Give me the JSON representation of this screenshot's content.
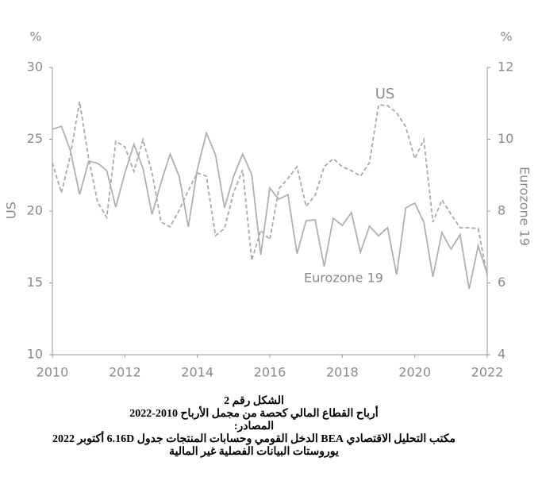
{
  "chart_data": {
    "type": "line",
    "yunit": "%",
    "y2unit": "%",
    "ylabel": "US",
    "y2label": "Eurozone 19",
    "x": [
      2010,
      2010.25,
      2010.5,
      2010.75,
      2011,
      2011.25,
      2011.5,
      2011.75,
      2012,
      2012.25,
      2012.5,
      2012.75,
      2013,
      2013.25,
      2013.5,
      2013.75,
      2014,
      2014.25,
      2014.5,
      2014.75,
      2015,
      2015.25,
      2015.5,
      2015.75,
      2016,
      2016.25,
      2016.5,
      2016.75,
      2017,
      2017.25,
      2017.5,
      2017.75,
      2018,
      2018.25,
      2018.5,
      2018.75,
      2019,
      2019.25,
      2019.5,
      2019.75,
      2020,
      2020.25,
      2020.5,
      2020.75,
      2021,
      2021.25,
      2021.5,
      2021.75,
      2022
    ],
    "series": [
      {
        "name": "US",
        "axis": "y",
        "color": "#aaaaaa",
        "line_style": "dashed",
        "values": [
          23.37,
          21.27,
          23.92,
          27.62,
          23.65,
          20.61,
          19.56,
          24.86,
          24.48,
          22.76,
          24.97,
          22.65,
          19.23,
          18.9,
          20.06,
          21.44,
          22.65,
          22.43,
          18.29,
          18.78,
          21.27,
          22.87,
          16.57,
          18.67,
          18.01,
          21.55,
          22.27,
          23.09,
          20.33,
          21.1,
          23.09,
          23.65,
          23.09,
          22.82,
          22.43,
          23.37,
          27.4,
          27.35,
          26.85,
          25.86,
          23.65,
          24.97,
          19.23,
          20.77,
          19.78,
          18.84,
          18.84,
          18.78,
          15.47
        ]
      },
      {
        "name": "Eurozone 19",
        "axis": "y2",
        "color": "#b0b0b0",
        "line_style": "solid",
        "values": [
          10.28,
          10.36,
          9.68,
          8.46,
          9.39,
          9.33,
          9.13,
          8.11,
          9.06,
          9.86,
          9.19,
          7.91,
          8.8,
          9.59,
          8.97,
          7.56,
          9.17,
          10.17,
          9.57,
          8.09,
          8.97,
          9.59,
          9.02,
          6.78,
          8.64,
          8.33,
          8.46,
          6.81,
          7.73,
          7.76,
          6.45,
          7.8,
          7.6,
          7.96,
          6.85,
          7.58,
          7.31,
          7.54,
          6.23,
          8.09,
          8.22,
          7.69,
          6.17,
          7.4,
          6.94,
          7.34,
          5.83,
          7.03,
          6.25
        ]
      }
    ],
    "xlim": [
      2010,
      2022
    ],
    "xticks": [
      2010,
      2012,
      2014,
      2016,
      2018,
      2020,
      2022
    ],
    "ylim": [
      10,
      30
    ],
    "yticks": [
      10,
      15,
      20,
      25,
      30
    ],
    "y2lim": [
      4,
      12
    ],
    "y2ticks": [
      4,
      6,
      8,
      10,
      12
    ],
    "caption": [
      "الشكل رقم 2",
      "أرباح القطاع المالي كحصة من مجمل الأرباح 2010-2022",
      "المصادر:",
      "مكتب التحليل الاقتصادي BEA الدخل القومي وحسابات المنتجات جدول 6.16D أكتوبر 2022",
      "يوروستات البيانات الفصلية غير المالية"
    ]
  }
}
